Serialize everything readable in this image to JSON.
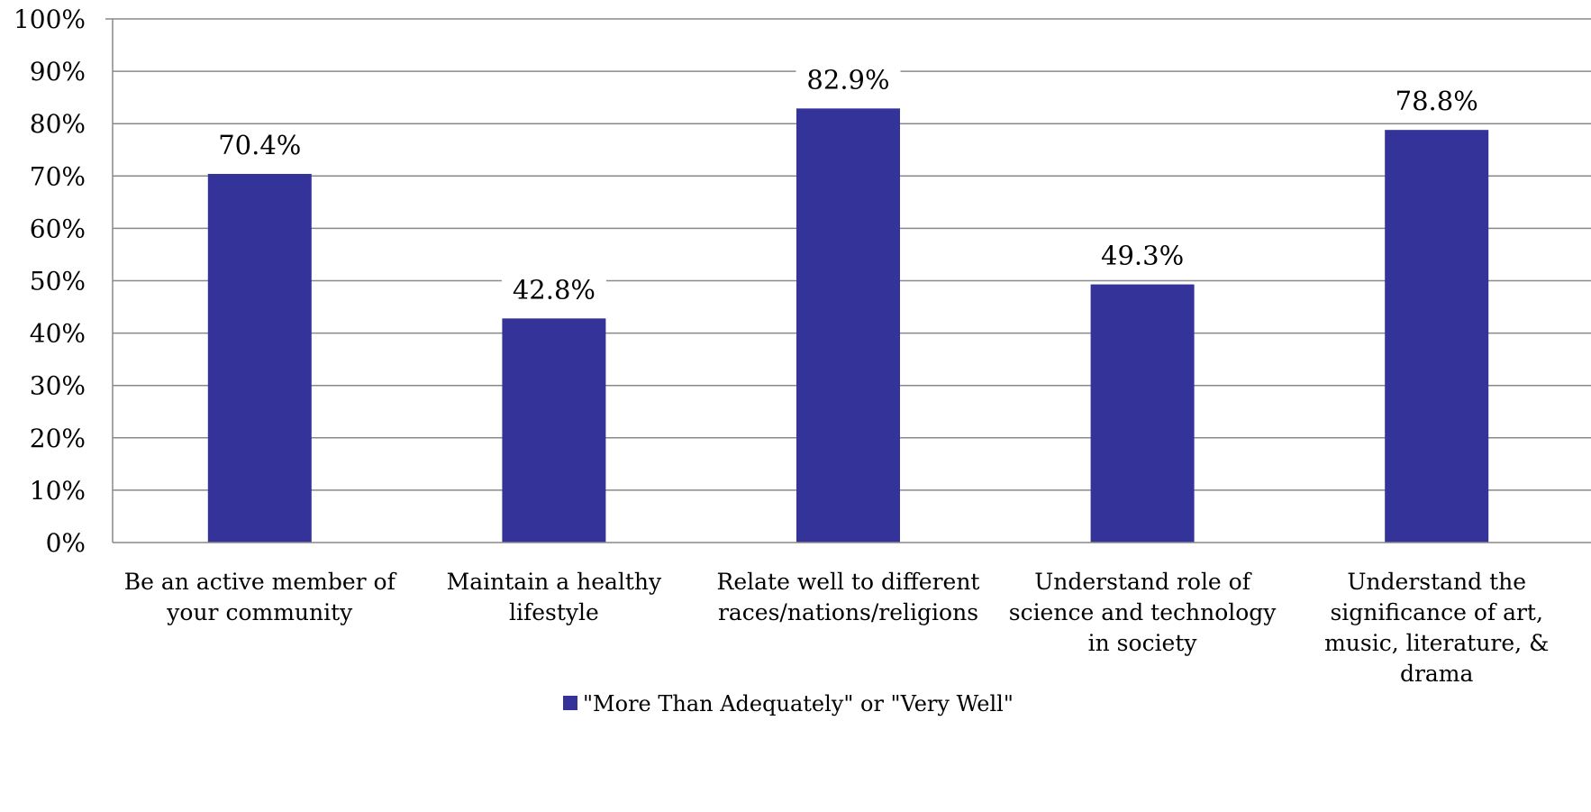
{
  "chart_data": {
    "type": "bar",
    "categories": [
      [
        "Be an active member of",
        "your community"
      ],
      [
        "Maintain a healthy",
        "lifestyle"
      ],
      [
        "Relate well to different",
        "races/nations/religions"
      ],
      [
        "Understand role of",
        "science and technology",
        "in society"
      ],
      [
        "Understand the",
        "significance of art,",
        "music, literature, &",
        "drama"
      ]
    ],
    "series": [
      {
        "name": "\"More Than Adequately\" or \"Very Well\"",
        "values": [
          70.4,
          42.8,
          82.9,
          49.3,
          78.8
        ],
        "data_labels": [
          "70.4%",
          "42.8%",
          "82.9%",
          "49.3%",
          "78.8%"
        ]
      }
    ],
    "ylim": [
      0,
      100
    ],
    "yticks": [
      0,
      10,
      20,
      30,
      40,
      50,
      60,
      70,
      80,
      90,
      100
    ],
    "ytick_labels": [
      "0%",
      "10%",
      "20%",
      "30%",
      "40%",
      "50%",
      "60%",
      "70%",
      "80%",
      "90%",
      "100%"
    ],
    "grid": true,
    "legend_position": "bottom",
    "colors": {
      "bar": "#333399",
      "grid": "#898989",
      "axis": "#898989"
    }
  }
}
